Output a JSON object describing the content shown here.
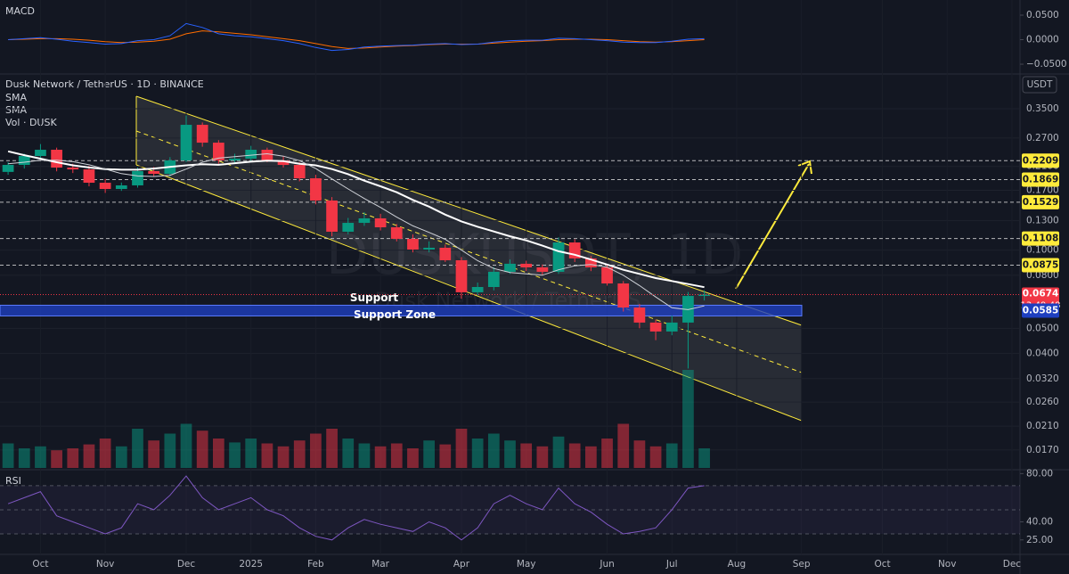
{
  "chart_data": {
    "type": "candlestick",
    "symbol": "Dusk Network / TetherUS · 1D · BINANCE",
    "currency": "USDT",
    "watermark": "DUSKUSDT, 1D",
    "watermark_sub": "Dusk Network / TetherUS",
    "categories": [
      null,
      null,
      "Oct",
      null,
      null,
      null,
      "Nov",
      null,
      null,
      null,
      null,
      "Dec",
      null,
      null,
      null,
      "2025",
      null,
      null,
      null,
      "Feb",
      null,
      null,
      null,
      "Mar",
      null,
      null,
      null,
      null,
      "Apr",
      null,
      null,
      null,
      "May",
      null,
      null,
      null,
      null,
      "Jun",
      null,
      null,
      null,
      "Jul",
      null,
      null,
      null,
      "Aug",
      null,
      null,
      null,
      "Sep",
      null,
      null,
      null,
      null,
      "Oct",
      null,
      null,
      null,
      "Nov",
      null,
      null,
      null,
      "Dec"
    ],
    "open": [
      0.2,
      0.2128,
      0.2303,
      0.2434,
      0.2078,
      0.2045,
      0.1817,
      0.1719,
      0.1775,
      0.2014,
      0.1966,
      0.2214,
      0.3036,
      0.2592,
      0.2214,
      0.2249,
      0.2434,
      0.2214,
      0.2128,
      0.189,
      0.1552,
      0.1177,
      0.1273,
      0.1325,
      0.1224,
      0.1105,
      0.1005,
      0.1021,
      0.0914,
      0.0688,
      0.0721,
      0.0825,
      0.0886,
      0.0858,
      0.0825,
      0.107,
      0.0929,
      0.0858,
      0.0744,
      0.0601,
      0.0526,
      0.0486,
      0.0526,
      0.0666,
      null,
      null,
      null,
      null,
      null,
      null,
      null,
      null,
      null,
      null,
      null,
      null,
      null,
      null,
      null,
      null,
      null,
      null,
      null
    ],
    "high": [
      0.218,
      0.235,
      0.256,
      0.248,
      0.215,
      0.211,
      0.188,
      0.182,
      0.208,
      0.209,
      0.228,
      0.33,
      0.31,
      0.265,
      0.235,
      0.252,
      0.248,
      0.23,
      0.218,
      0.195,
      0.16,
      0.133,
      0.14,
      0.138,
      0.126,
      0.115,
      0.108,
      0.105,
      0.094,
      0.075,
      0.086,
      0.092,
      0.091,
      0.088,
      0.112,
      0.11,
      0.095,
      0.088,
      0.076,
      0.062,
      0.054,
      0.056,
      0.069,
      0.07,
      null,
      null,
      null,
      null,
      null,
      null,
      null,
      null,
      null,
      null,
      null,
      null,
      null,
      null,
      null,
      null,
      null,
      null,
      null
    ],
    "low": [
      0.195,
      0.206,
      0.225,
      0.201,
      0.198,
      0.176,
      0.166,
      0.169,
      0.174,
      0.192,
      0.192,
      0.218,
      0.25,
      0.215,
      0.215,
      0.219,
      0.218,
      0.208,
      0.184,
      0.15,
      0.113,
      0.115,
      0.124,
      0.119,
      0.108,
      0.098,
      0.098,
      0.09,
      0.065,
      0.067,
      0.07,
      0.081,
      0.083,
      0.08,
      0.081,
      0.09,
      0.083,
      0.073,
      0.058,
      0.05,
      0.045,
      0.047,
      0.035,
      0.064,
      null,
      null,
      null,
      null,
      null,
      null,
      null,
      null,
      null,
      null,
      null,
      null,
      null,
      null,
      null,
      null,
      null,
      null,
      null
    ],
    "close": [
      0.2128,
      0.2303,
      0.2434,
      0.2078,
      0.2045,
      0.1817,
      0.1719,
      0.1775,
      0.2014,
      0.1966,
      0.2214,
      0.3036,
      0.2592,
      0.2214,
      0.2249,
      0.2434,
      0.2214,
      0.2128,
      0.189,
      0.1552,
      0.1177,
      0.1273,
      0.1325,
      0.1224,
      0.1105,
      0.1005,
      0.1021,
      0.0914,
      0.0688,
      0.0721,
      0.0825,
      0.0886,
      0.0858,
      0.0825,
      0.107,
      0.0929,
      0.0858,
      0.0744,
      0.0601,
      0.0526,
      0.0486,
      0.0526,
      0.0666,
      0.0674,
      null,
      null,
      null,
      null,
      null,
      null,
      null,
      null,
      null,
      null,
      null,
      null,
      null,
      null,
      null,
      null,
      null,
      null,
      null
    ],
    "up_color": "#089981",
    "down_color": "#f23645",
    "log_scale": true,
    "ylim": [
      0.0145,
      0.469
    ],
    "yticks": [
      {
        "value": 0.35,
        "label": "0.3500"
      },
      {
        "value": 0.27,
        "label": "0.2700"
      },
      {
        "value": 0.21,
        "label": "0.2100"
      },
      {
        "value": 0.17,
        "label": "0.1700"
      },
      {
        "value": 0.13,
        "label": "0.1300"
      },
      {
        "value": 0.1,
        "label": "0.1000"
      },
      {
        "value": 0.08,
        "label": "0.0800"
      },
      {
        "value": 0.05,
        "label": "0.0500"
      },
      {
        "value": 0.04,
        "label": "0.0400"
      },
      {
        "value": 0.032,
        "label": "0.0320"
      },
      {
        "value": 0.026,
        "label": "0.0260"
      },
      {
        "value": 0.021,
        "label": "0.0210"
      },
      {
        "value": 0.017,
        "label": "0.0170"
      }
    ],
    "series": [
      {
        "name": "SMA",
        "color": "#ffffff",
        "values": [
          0.24,
          0.232,
          0.225,
          0.218,
          0.212,
          0.208,
          0.205,
          0.204,
          0.204,
          0.206,
          0.209,
          0.212,
          0.214,
          0.213,
          0.216,
          0.219,
          0.221,
          0.22,
          0.215,
          0.212,
          0.205,
          0.196,
          0.185,
          0.176,
          0.167,
          0.156,
          0.147,
          0.137,
          0.129,
          0.123,
          0.118,
          0.113,
          0.109,
          0.104,
          0.099,
          0.096,
          0.092,
          0.088,
          0.084,
          0.081,
          0.078,
          0.076,
          0.074,
          0.072,
          null,
          null,
          null,
          null,
          null,
          null,
          null,
          null,
          null,
          null,
          null,
          null,
          null,
          null,
          null,
          null,
          null,
          null,
          null
        ]
      },
      {
        "name": "SMA",
        "color": "#cfd2d8",
        "values": [
          0.215,
          0.218,
          0.222,
          0.222,
          0.219,
          0.213,
          0.205,
          0.197,
          0.193,
          0.192,
          0.194,
          0.205,
          0.218,
          0.226,
          0.229,
          0.232,
          0.235,
          0.23,
          0.221,
          0.206,
          0.188,
          0.172,
          0.158,
          0.146,
          0.134,
          0.124,
          0.117,
          0.11,
          0.1,
          0.091,
          0.085,
          0.082,
          0.081,
          0.08,
          0.084,
          0.087,
          0.088,
          0.086,
          0.08,
          0.073,
          0.066,
          0.06,
          0.059,
          0.061,
          null,
          null,
          null,
          null,
          null,
          null,
          null,
          null,
          null,
          null,
          null,
          null,
          null,
          null,
          null,
          null,
          null,
          null,
          null
        ]
      }
    ],
    "volume": {
      "name": "Vol · DUSK",
      "values": [
        25,
        20,
        22,
        18,
        20,
        24,
        30,
        22,
        40,
        28,
        35,
        45,
        38,
        30,
        26,
        30,
        25,
        22,
        28,
        35,
        40,
        30,
        25,
        22,
        25,
        20,
        28,
        24,
        40,
        30,
        35,
        28,
        25,
        22,
        32,
        25,
        22,
        30,
        45,
        28,
        22,
        25,
        100,
        20,
        null,
        null,
        null,
        null,
        null,
        null,
        null,
        null,
        null,
        null,
        null,
        null,
        null,
        null,
        null,
        null,
        null,
        null,
        null
      ]
    },
    "levels": [
      0.2209,
      0.1869,
      0.1529,
      0.1108,
      0.0875
    ],
    "level_color": "#ffeb3b",
    "last_price": 0.0674,
    "countdown": "13:49:48",
    "support_zone": {
      "value": 0.0585,
      "color": "#1e3fbf"
    },
    "annotations": [
      "Support",
      "Support Zone"
    ],
    "macd": {
      "title": "MACD",
      "ylim": [
        -0.0736,
        0.0809
      ],
      "yticks": [
        {
          "value": 0.05,
          "label": "0.0500"
        },
        {
          "value": 0,
          "label": "0.0000"
        },
        {
          "value": -0.05,
          "label": "−0.0500"
        }
      ],
      "macd_color": "#2962ff",
      "signal_color": "#ff6d00",
      "values": [
        0,
        0.002,
        0.004,
        0.001,
        -0.003,
        -0.006,
        -0.009,
        -0.008,
        -0.002,
        0,
        0.008,
        0.033,
        0.025,
        0.012,
        0.008,
        0.006,
        0.002,
        -0.002,
        -0.008,
        -0.016,
        -0.022,
        -0.02,
        -0.015,
        -0.013,
        -0.012,
        -0.011,
        -0.009,
        -0.008,
        -0.01,
        -0.009,
        -0.005,
        -0.002,
        -0.001,
        -0.001,
        0.003,
        0.002,
        0,
        -0.002,
        -0.005,
        -0.006,
        -0.006,
        -0.003,
        0.001,
        0.002,
        null,
        null,
        null,
        null,
        null,
        null,
        null,
        null,
        null,
        null,
        null,
        null,
        null,
        null,
        null,
        null,
        null,
        null,
        null
      ],
      "signal": [
        0,
        0.001,
        0.002,
        0.002,
        0.001,
        -0.001,
        -0.004,
        -0.006,
        -0.005,
        -0.003,
        0.001,
        0.012,
        0.018,
        0.016,
        0.013,
        0.01,
        0.006,
        0.002,
        -0.002,
        -0.008,
        -0.014,
        -0.018,
        -0.017,
        -0.015,
        -0.013,
        -0.012,
        -0.01,
        -0.009,
        -0.009,
        -0.009,
        -0.007,
        -0.005,
        -0.003,
        -0.002,
        0,
        0.001,
        0.001,
        0,
        -0.002,
        -0.004,
        -0.005,
        -0.004,
        -0.002,
        0,
        null,
        null,
        null,
        null,
        null,
        null,
        null,
        null,
        null,
        null,
        null,
        null,
        null,
        null,
        null,
        null,
        null,
        null,
        null
      ]
    },
    "rsi": {
      "title": "RSI",
      "color": "#7e57c2",
      "ylim": [
        13,
        81
      ],
      "yticks": [
        {
          "value": 80,
          "label": "80.00"
        },
        {
          "value": 40,
          "label": "40.00"
        },
        {
          "value": 25,
          "label": "25.00"
        }
      ],
      "levels": [
        70,
        50,
        30
      ],
      "values": [
        55,
        60,
        65,
        45,
        40,
        35,
        30,
        35,
        55,
        50,
        62,
        78,
        60,
        50,
        55,
        60,
        50,
        45,
        35,
        28,
        25,
        35,
        42,
        38,
        35,
        32,
        40,
        35,
        25,
        35,
        55,
        62,
        55,
        50,
        68,
        55,
        48,
        38,
        30,
        32,
        35,
        50,
        68,
        70,
        null,
        null,
        null,
        null,
        null,
        null,
        null,
        null,
        null,
        null,
        null,
        null,
        null,
        null,
        null,
        null,
        null,
        null,
        null
      ]
    }
  }
}
